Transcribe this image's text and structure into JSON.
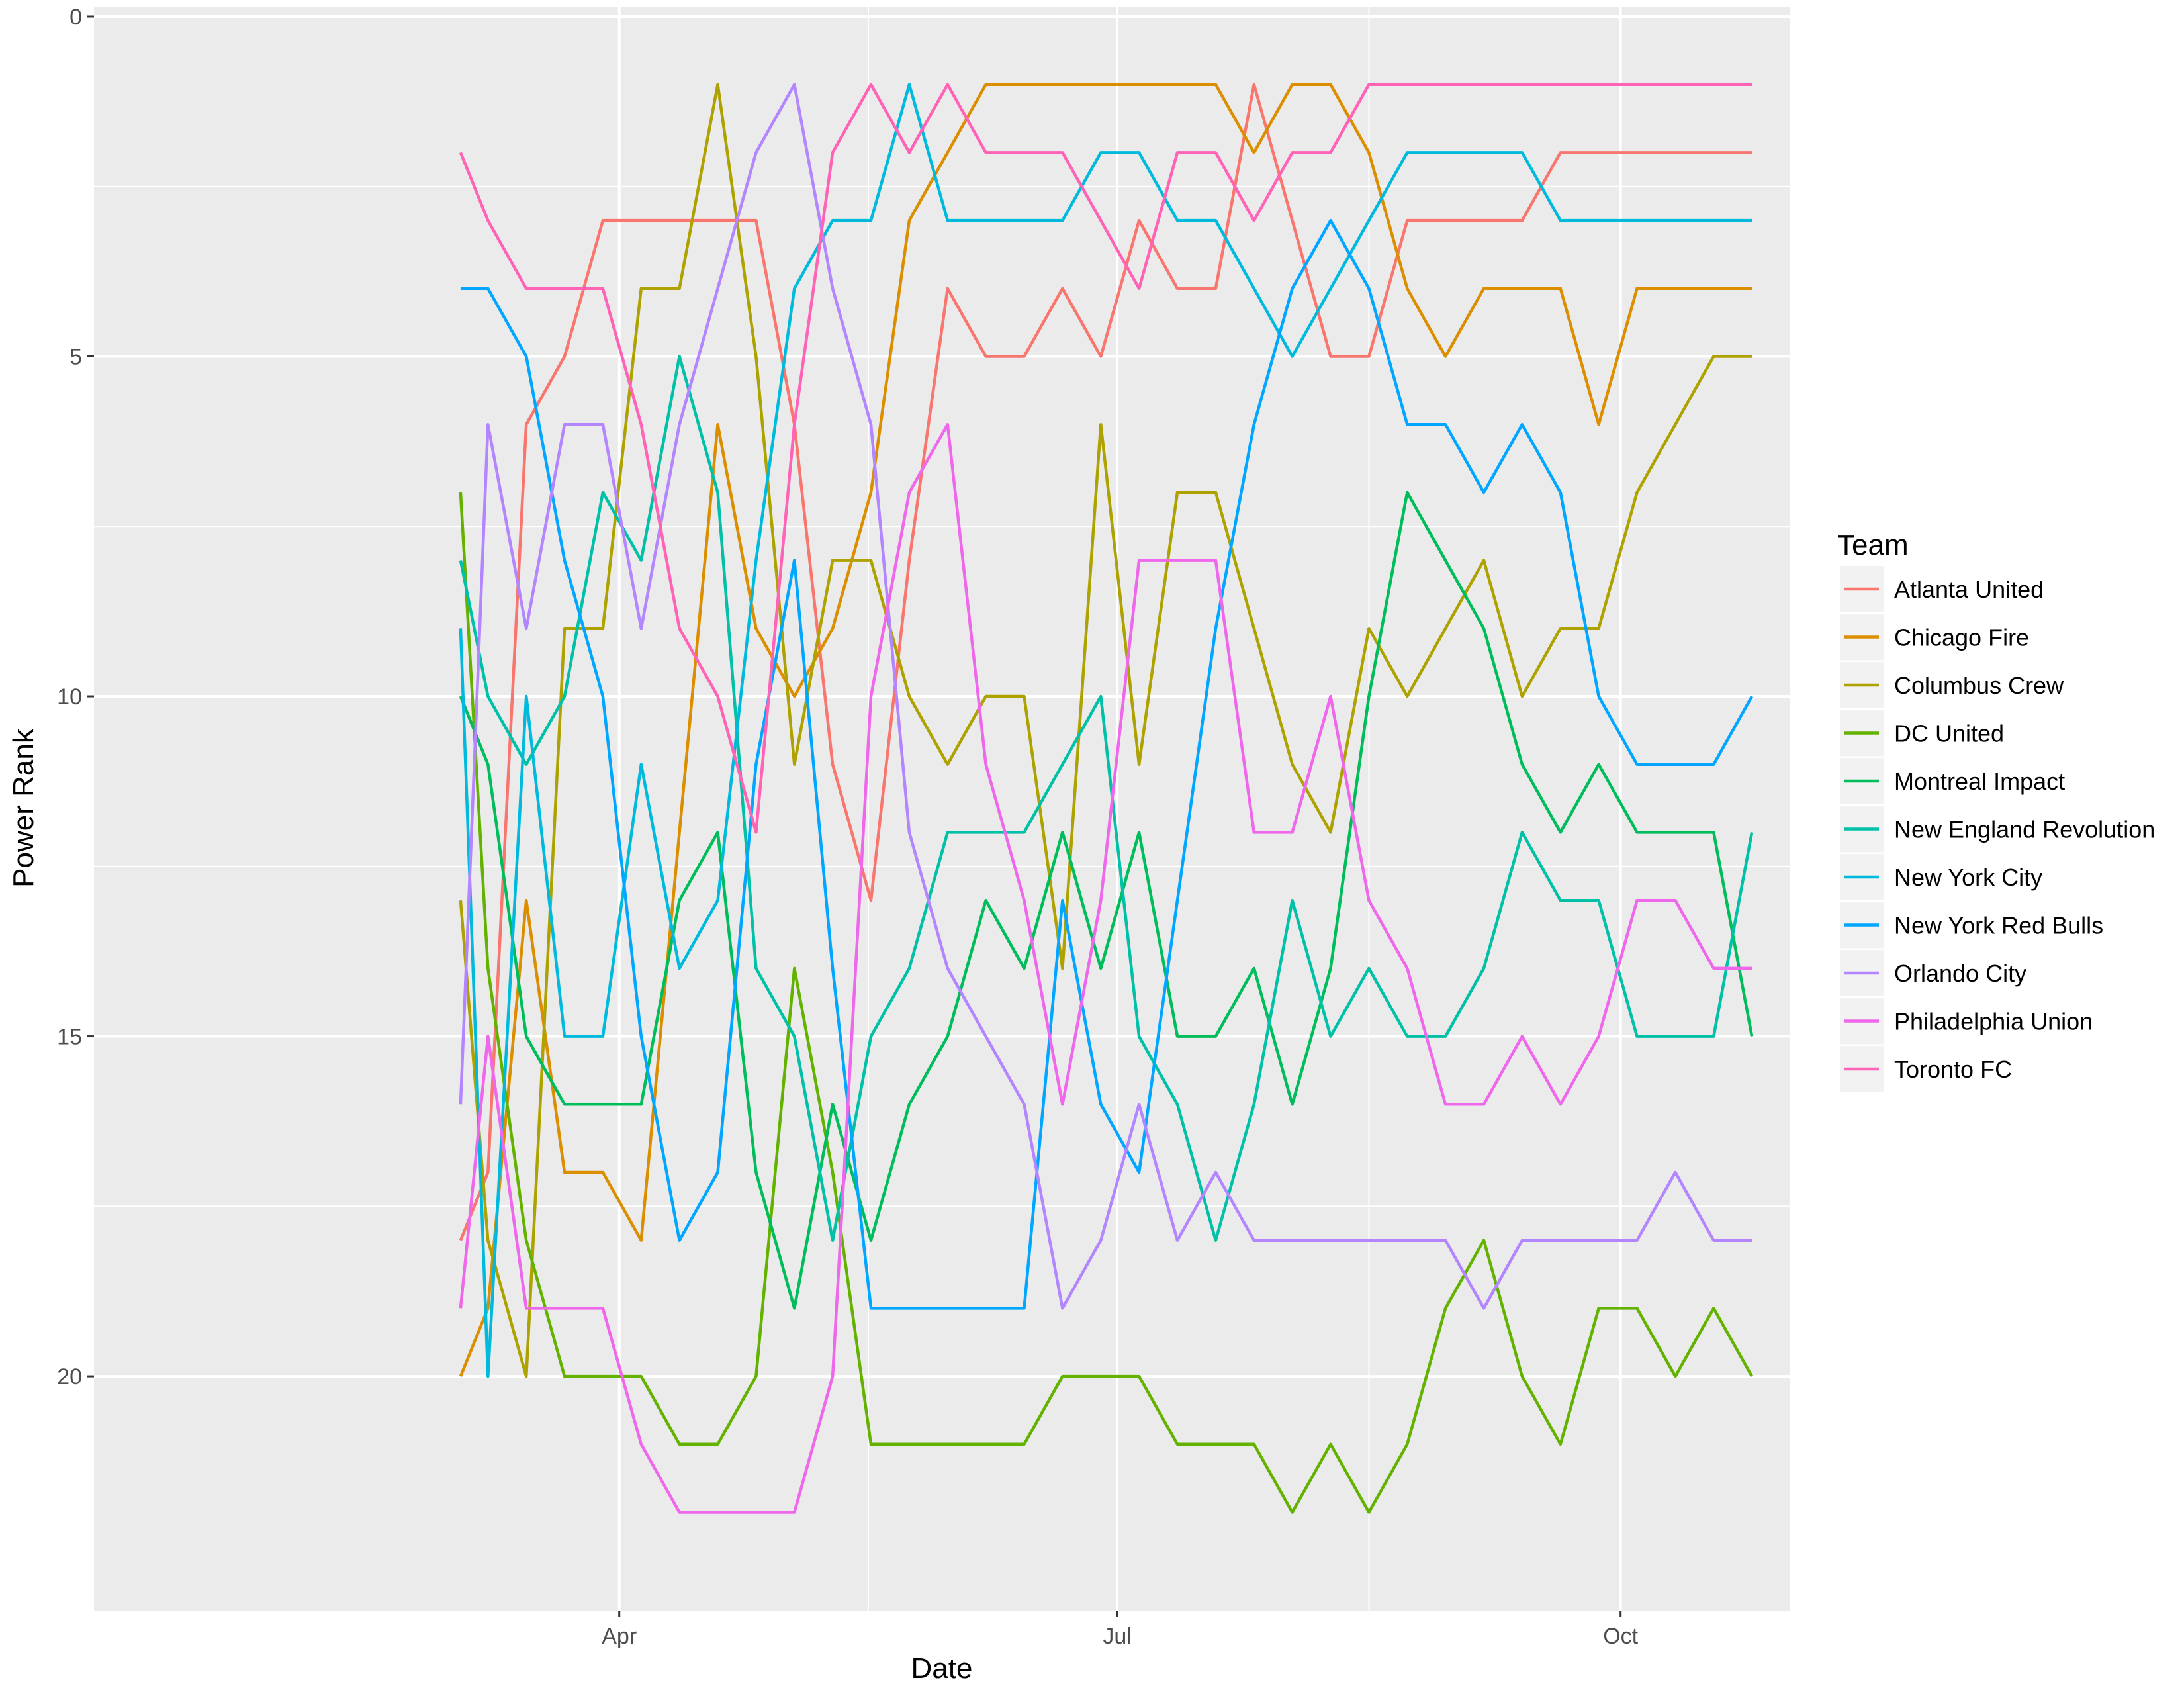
{
  "chart_data": {
    "type": "line",
    "xlabel": "Date",
    "ylabel": "Power Rank",
    "x_ticks": [
      {
        "date": "2017-04-01",
        "label": "Apr"
      },
      {
        "date": "2017-07-01",
        "label": "Jul"
      },
      {
        "date": "2017-10-01",
        "label": "Oct"
      }
    ],
    "y_ticks": [
      0,
      5,
      10,
      15,
      20
    ],
    "xlim": [
      "2016-12-26",
      "2017-11-01"
    ],
    "ylim": [
      0,
      23.3
    ],
    "y_reversed": true,
    "grid": true,
    "legend": {
      "title": "Team",
      "position": "right"
    },
    "x": [
      "2017-03-03",
      "2017-03-08",
      "2017-03-15",
      "2017-03-22",
      "2017-03-29",
      "2017-04-05",
      "2017-04-12",
      "2017-04-19",
      "2017-04-26",
      "2017-05-03",
      "2017-05-10",
      "2017-05-17",
      "2017-05-24",
      "2017-05-31",
      "2017-06-07",
      "2017-06-14",
      "2017-06-21",
      "2017-06-28",
      "2017-07-05",
      "2017-07-12",
      "2017-07-19",
      "2017-07-26",
      "2017-08-02",
      "2017-08-09",
      "2017-08-16",
      "2017-08-23",
      "2017-08-30",
      "2017-09-06",
      "2017-09-13",
      "2017-09-20",
      "2017-09-27",
      "2017-10-04",
      "2017-10-11",
      "2017-10-18",
      "2017-10-25"
    ],
    "series": [
      {
        "name": "Atlanta United",
        "color": "#F8766D",
        "values": [
          18,
          17,
          6,
          5,
          3,
          3,
          3,
          3,
          3,
          6,
          11,
          13,
          8,
          4,
          5,
          5,
          4,
          5,
          3,
          4,
          4,
          1,
          3,
          5,
          5,
          3,
          3,
          3,
          3,
          2,
          2,
          2,
          2,
          2,
          2
        ]
      },
      {
        "name": "Chicago Fire",
        "color": "#DB8E00",
        "values": [
          20,
          19,
          13,
          17,
          17,
          18,
          12,
          6,
          9,
          10,
          9,
          7,
          3,
          2,
          1,
          1,
          1,
          1,
          1,
          1,
          1,
          2,
          1,
          1,
          2,
          4,
          5,
          4,
          4,
          4,
          6,
          4,
          4,
          4,
          4
        ]
      },
      {
        "name": "Columbus Crew",
        "color": "#AEA200",
        "values": [
          13,
          18,
          20,
          9,
          9,
          4,
          4,
          1,
          5,
          11,
          8,
          8,
          10,
          11,
          10,
          10,
          14,
          6,
          11,
          7,
          7,
          9,
          11,
          12,
          9,
          10,
          9,
          8,
          10,
          9,
          9,
          7,
          6,
          5,
          5
        ]
      },
      {
        "name": "DC United",
        "color": "#64B200",
        "values": [
          7,
          14,
          18,
          20,
          20,
          20,
          21,
          21,
          20,
          14,
          17,
          21,
          21,
          21,
          21,
          21,
          20,
          20,
          20,
          21,
          21,
          21,
          22,
          21,
          22,
          21,
          19,
          18,
          20,
          21,
          19,
          19,
          20,
          19,
          20
        ]
      },
      {
        "name": "Montreal Impact",
        "color": "#00BD5C",
        "values": [
          10,
          11,
          15,
          16,
          16,
          16,
          13,
          12,
          17,
          19,
          16,
          18,
          16,
          15,
          13,
          14,
          12,
          14,
          12,
          15,
          15,
          14,
          16,
          14,
          10,
          7,
          8,
          9,
          11,
          12,
          11,
          12,
          12,
          12,
          15
        ]
      },
      {
        "name": "New England Revolution",
        "color": "#00C1A7",
        "values": [
          8,
          10,
          11,
          10,
          7,
          8,
          5,
          7,
          14,
          15,
          18,
          15,
          14,
          12,
          12,
          12,
          11,
          10,
          15,
          16,
          18,
          16,
          13,
          15,
          14,
          15,
          15,
          14,
          12,
          13,
          13,
          15,
          15,
          15,
          12
        ]
      },
      {
        "name": "New York City",
        "color": "#00BADE",
        "values": [
          9,
          20,
          10,
          15,
          15,
          11,
          14,
          13,
          8,
          4,
          3,
          3,
          1,
          3,
          3,
          3,
          3,
          2,
          2,
          3,
          3,
          4,
          5,
          4,
          3,
          2,
          2,
          2,
          2,
          3,
          3,
          3,
          3,
          3,
          3
        ]
      },
      {
        "name": "New York Red Bulls",
        "color": "#00A6FF",
        "values": [
          4,
          4,
          5,
          8,
          10,
          15,
          18,
          17,
          11,
          8,
          14,
          19,
          19,
          19,
          19,
          19,
          13,
          16,
          17,
          13,
          9,
          6,
          4,
          3,
          4,
          6,
          6,
          7,
          6,
          7,
          10,
          11,
          11,
          11,
          10
        ]
      },
      {
        "name": "Orlando City",
        "color": "#B385FF",
        "values": [
          16,
          6,
          9,
          6,
          6,
          9,
          6,
          4,
          2,
          1,
          4,
          6,
          12,
          14,
          15,
          16,
          19,
          18,
          16,
          18,
          17,
          18,
          18,
          18,
          18,
          18,
          18,
          19,
          18,
          18,
          18,
          18,
          17,
          18,
          18
        ]
      },
      {
        "name": "Philadelphia Union",
        "color": "#EF67EB",
        "values": [
          19,
          15,
          19,
          19,
          19,
          21,
          22,
          22,
          22,
          22,
          20,
          10,
          7,
          6,
          11,
          13,
          16,
          13,
          8,
          8,
          8,
          12,
          12,
          10,
          13,
          14,
          16,
          16,
          15,
          16,
          15,
          13,
          13,
          14,
          14
        ]
      },
      {
        "name": "Toronto FC",
        "color": "#FF63B6",
        "values": [
          2,
          3,
          4,
          4,
          4,
          6,
          9,
          10,
          12,
          6,
          2,
          1,
          2,
          1,
          2,
          2,
          2,
          3,
          4,
          2,
          2,
          3,
          2,
          2,
          1,
          1,
          1,
          1,
          1,
          1,
          1,
          1,
          1,
          1,
          1
        ]
      }
    ]
  }
}
